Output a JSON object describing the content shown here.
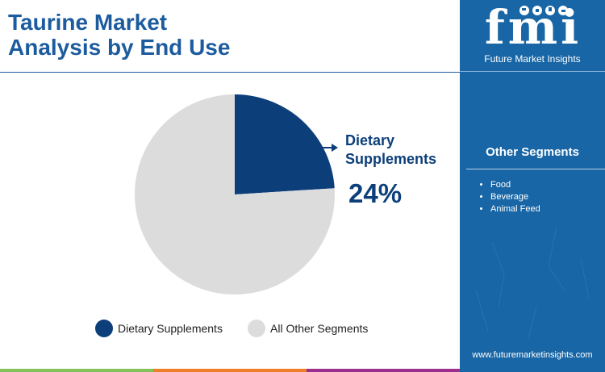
{
  "header": {
    "title_line1": "Taurine Market",
    "title_line2": "Analysis by End Use"
  },
  "brand": {
    "logo_letters": "fmi",
    "logo_name": "Future Market Insights",
    "website": "www.futuremarketinsights.com"
  },
  "sidebar": {
    "other_segments_title": "Other Segments",
    "items": [
      "Food",
      "Beverage",
      "Animal Feed"
    ]
  },
  "colors": {
    "title": "#1b5b9e",
    "sidebar": "#1866a6",
    "highlight": "#0c3f7a",
    "other": "#dcdcdc",
    "footer": [
      "#86c25a",
      "#f07e26",
      "#9c2f8e"
    ]
  },
  "chart_data": {
    "type": "pie",
    "title": "",
    "slices": [
      {
        "label": "Dietary Supplements",
        "value": 24,
        "color": "#0c3f7a"
      },
      {
        "label": "All Other Segments",
        "value": 76,
        "color": "#dcdcdc"
      }
    ],
    "callout": {
      "label_line1": "Dietary",
      "label_line2": "Supplements",
      "value_text": "24%"
    },
    "legend": [
      "Dietary Supplements",
      "All Other Segments"
    ],
    "legend_position": "bottom"
  }
}
